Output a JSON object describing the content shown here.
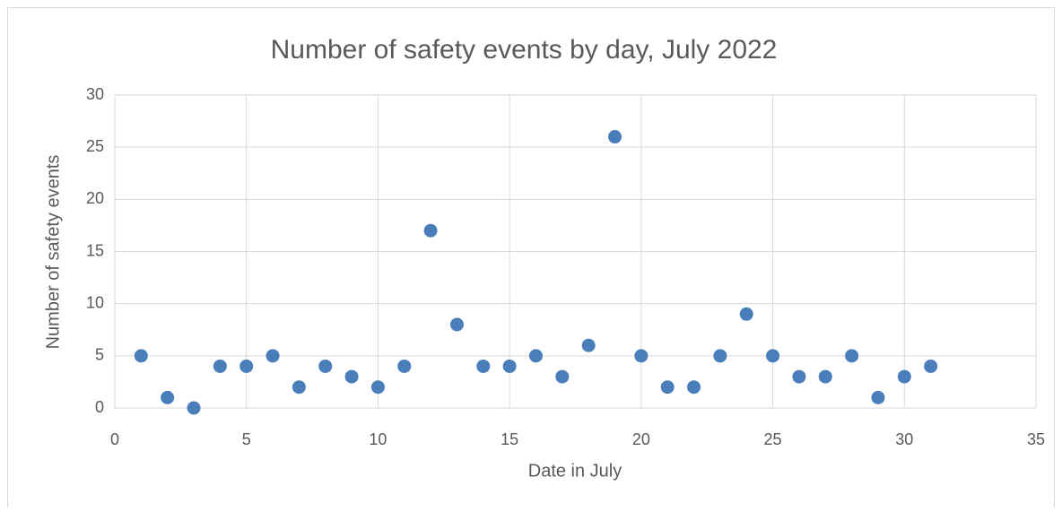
{
  "chart_data": {
    "type": "scatter",
    "title": "Number of safety events by day, July 2022",
    "x_label": "Date in July",
    "y_label": "Number of safety events",
    "series": [
      {
        "name": "Number of safety events",
        "color": "#4a7ebb",
        "x": [
          1,
          2,
          3,
          4,
          5,
          6,
          7,
          8,
          9,
          10,
          11,
          12,
          13,
          14,
          15,
          16,
          17,
          18,
          19,
          20,
          21,
          22,
          23,
          24,
          25,
          26,
          27,
          28,
          29,
          30,
          31
        ],
        "values": [
          5,
          1,
          0,
          4,
          4,
          5,
          2,
          4,
          3,
          2,
          4,
          17,
          8,
          4,
          4,
          5,
          3,
          6,
          26,
          5,
          2,
          2,
          5,
          9,
          5,
          3,
          3,
          5,
          1,
          3,
          4
        ]
      }
    ],
    "xlim": [
      0,
      35
    ],
    "xticks": [
      0,
      5,
      10,
      15,
      20,
      25,
      30,
      35
    ],
    "ylim": [
      0,
      30
    ],
    "yticks": [
      0,
      5,
      10,
      15,
      20,
      25,
      30
    ],
    "grid": true
  }
}
